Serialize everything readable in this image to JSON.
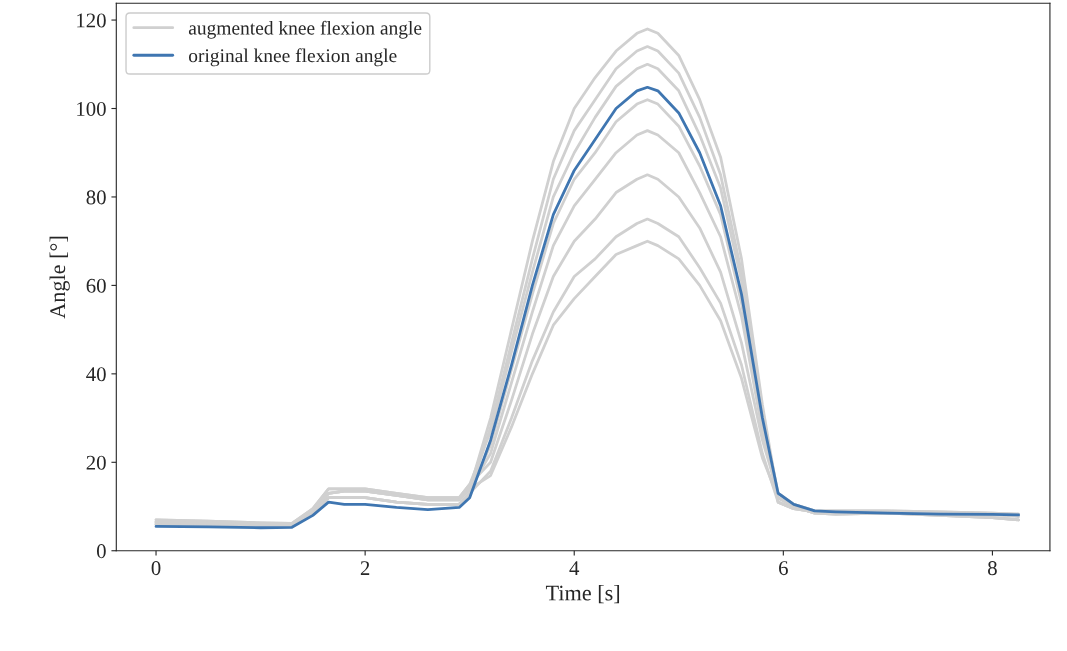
{
  "chart_data": {
    "type": "line",
    "xlabel": "Time [s]",
    "ylabel": "Angle [°]",
    "x": [
      0,
      0.5,
      1,
      1.3,
      1.5,
      1.65,
      1.8,
      2,
      2.3,
      2.6,
      2.9,
      3.0,
      3.2,
      3.4,
      3.6,
      3.8,
      4.0,
      4.2,
      4.4,
      4.6,
      4.7,
      4.8,
      5.0,
      5.2,
      5.4,
      5.6,
      5.8,
      5.95,
      6.1,
      6.3,
      6.5,
      7,
      7.5,
      8,
      8.25
    ],
    "series": [
      {
        "name": "augmented knee flexion angle",
        "color": "#d0d0d0",
        "values": [
          6.5,
          6.3,
          6,
          6,
          9,
          13,
          13.5,
          13.5,
          12.5,
          11.5,
          11.5,
          14,
          30,
          50,
          70,
          88,
          100,
          107,
          113,
          117,
          118,
          117,
          112,
          102,
          89,
          66,
          33,
          12,
          10,
          8.5,
          8.3,
          8.5,
          8,
          7.5,
          7
        ]
      },
      {
        "color": "#d0d0d0",
        "values": [
          6,
          5.8,
          5.6,
          5.6,
          8.5,
          12,
          12,
          12,
          11,
          10.5,
          10.5,
          13,
          28,
          47,
          66,
          84,
          95,
          102,
          109,
          113,
          114,
          113,
          108,
          98,
          85,
          63,
          32,
          11,
          9.5,
          8.8,
          8.5,
          8.8,
          8.5,
          8.2,
          7.8
        ]
      },
      {
        "color": "#d0d0d0",
        "values": [
          7,
          6.7,
          6.3,
          6.2,
          9.5,
          14,
          14,
          14,
          13,
          12,
          12,
          15,
          27,
          45,
          63,
          80,
          90,
          98,
          105,
          109,
          110,
          109,
          104,
          94,
          82,
          61,
          31,
          13,
          10.5,
          9,
          9,
          9,
          8.8,
          8.5,
          8.3
        ]
      },
      {
        "color": "#d0d0d0",
        "values": [
          6,
          5.8,
          5.6,
          5.6,
          8.5,
          12,
          12,
          12,
          11,
          10.5,
          10.5,
          13,
          24,
          41,
          58,
          74,
          84,
          90,
          97,
          101,
          102,
          101,
          96,
          87,
          76,
          56,
          29,
          11,
          9.5,
          8.8,
          8.5,
          8.8,
          8.5,
          8.2,
          7.8
        ]
      },
      {
        "color": "#d0d0d0",
        "values": [
          6.5,
          6.3,
          6,
          6,
          9,
          13,
          13.5,
          13.5,
          12.5,
          11.5,
          11.5,
          14,
          22,
          38,
          54,
          69,
          78,
          84,
          90,
          94,
          95,
          94,
          90,
          81,
          71,
          53,
          27,
          12,
          10,
          8.5,
          8.3,
          8.5,
          8,
          7.5,
          7
        ]
      },
      {
        "color": "#d0d0d0",
        "values": [
          7,
          6.7,
          6.3,
          6.2,
          9.5,
          14,
          14,
          14,
          13,
          12,
          12,
          15,
          20,
          34,
          49,
          62,
          70,
          75,
          81,
          84,
          85,
          84,
          80,
          73,
          63,
          47,
          25,
          13,
          10.5,
          9,
          9,
          9,
          8.8,
          8.5,
          8.3
        ]
      },
      {
        "color": "#d0d0d0",
        "values": [
          6,
          5.8,
          5.6,
          5.6,
          8.5,
          12,
          12,
          12,
          11,
          10.5,
          10.5,
          13,
          18,
          30,
          43,
          54,
          62,
          66,
          71,
          74,
          75,
          74,
          71,
          64,
          56,
          42,
          22,
          11,
          9.5,
          8.8,
          8.5,
          8.8,
          8.5,
          8.2,
          7.8
        ]
      },
      {
        "color": "#d0d0d0",
        "values": [
          6.5,
          6.3,
          6,
          6,
          9,
          13,
          13.5,
          13.5,
          12.5,
          11.5,
          11.5,
          14,
          17,
          28,
          40,
          51,
          57,
          62,
          67,
          69,
          70,
          69,
          66,
          60,
          52,
          39,
          21,
          12,
          10,
          8.5,
          8.3,
          8.5,
          8,
          7.5,
          7
        ]
      },
      {
        "name": "original knee flexion angle",
        "color": "#3f76b1",
        "values": [
          5.5,
          5.4,
          5.2,
          5.3,
          8,
          11,
          10.5,
          10.5,
          9.8,
          9.3,
          9.8,
          12,
          25,
          42,
          60,
          76,
          86,
          93,
          100,
          104,
          104.8,
          104,
          99,
          90,
          78,
          58,
          30,
          13,
          10.5,
          9,
          8.8,
          8.5,
          8.3,
          8.2,
          8.1
        ]
      }
    ],
    "xlim": [
      -0.38,
      8.55
    ],
    "ylim": [
      0,
      123.8
    ],
    "xticks": [
      0,
      2,
      4,
      6,
      8
    ],
    "yticks": [
      0,
      20,
      40,
      60,
      80,
      100,
      120
    ],
    "grid": false,
    "legend": "top left"
  }
}
